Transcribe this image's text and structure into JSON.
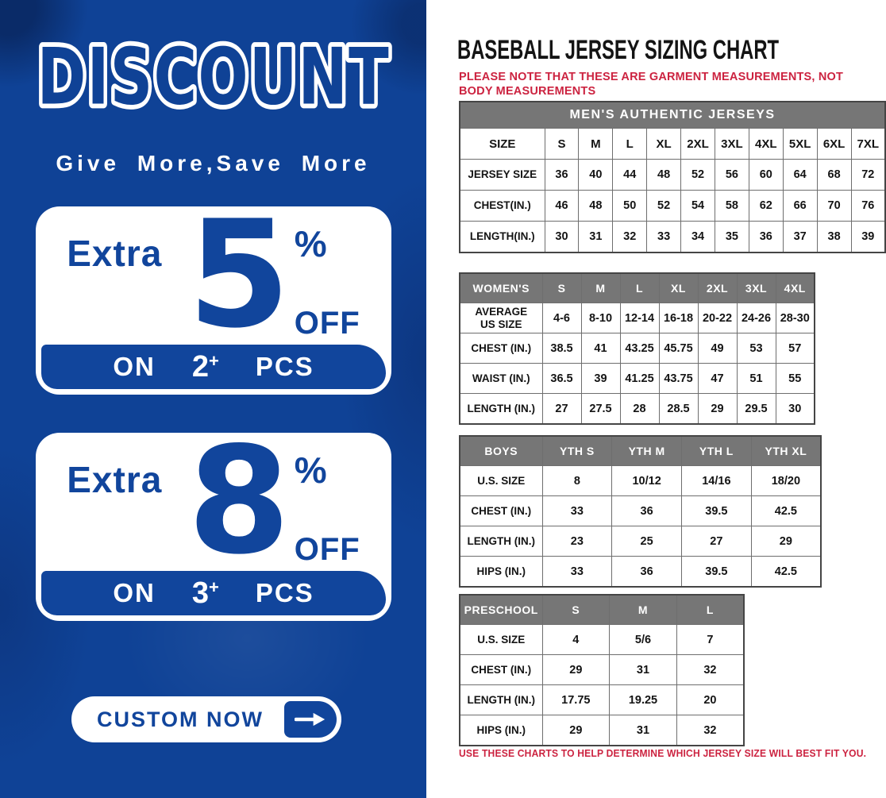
{
  "left_panel": {
    "headline": "DISCOUNT",
    "tagline": "Give More,Save More",
    "offers": [
      {
        "prefix": "Extra",
        "percent": "5",
        "percent_sign": "%",
        "off": "OFF",
        "on": "ON",
        "qty": "2",
        "plus": "+",
        "pcs": "PCS"
      },
      {
        "prefix": "Extra",
        "percent": "8",
        "percent_sign": "%",
        "off": "OFF",
        "on": "ON",
        "qty": "3",
        "plus": "+",
        "pcs": "PCS"
      }
    ],
    "cta": {
      "label": "CUSTOM NOW",
      "icon": "arrow-right-icon"
    }
  },
  "right_panel": {
    "title": "BASEBALL JERSEY SIZING CHART",
    "note": "PLEASE NOTE THAT THESE ARE GARMENT MEASUREMENTS, NOT BODY MEASUREMENTS",
    "footer_note": "USE THESE CHARTS TO HELP DETERMINE WHICH JERSEY SIZE WILL BEST FIT YOU.",
    "tables": [
      {
        "id": "mens",
        "banner": "MEN'S AUTHENTIC JERSEYS",
        "header_style": "plain",
        "columns": [
          "SIZE",
          "S",
          "M",
          "L",
          "XL",
          "2XL",
          "3XL",
          "4XL",
          "5XL",
          "6XL",
          "7XL"
        ],
        "rows": [
          [
            "JERSEY SIZE",
            "36",
            "40",
            "44",
            "48",
            "52",
            "56",
            "60",
            "64",
            "68",
            "72"
          ],
          [
            "CHEST(IN.)",
            "46",
            "48",
            "50",
            "52",
            "54",
            "58",
            "62",
            "66",
            "70",
            "76"
          ],
          [
            "LENGTH(IN.)",
            "30",
            "31",
            "32",
            "33",
            "34",
            "35",
            "36",
            "37",
            "38",
            "39"
          ]
        ]
      },
      {
        "id": "womens",
        "banner": null,
        "header_style": "gray",
        "columns": [
          "WOMEN'S",
          "S",
          "M",
          "L",
          "XL",
          "2XL",
          "3XL",
          "4XL"
        ],
        "rows": [
          [
            "AVERAGE\nUS SIZE",
            "4-6",
            "8-10",
            "12-14",
            "16-18",
            "20-22",
            "24-26",
            "28-30"
          ],
          [
            "CHEST (IN.)",
            "38.5",
            "41",
            "43.25",
            "45.75",
            "49",
            "53",
            "57"
          ],
          [
            "WAIST (IN.)",
            "36.5",
            "39",
            "41.25",
            "43.75",
            "47",
            "51",
            "55"
          ],
          [
            "LENGTH (IN.)",
            "27",
            "27.5",
            "28",
            "28.5",
            "29",
            "29.5",
            "30"
          ]
        ]
      },
      {
        "id": "boys",
        "banner": null,
        "header_style": "gray",
        "columns": [
          "BOYS",
          "YTH S",
          "YTH M",
          "YTH L",
          "YTH XL"
        ],
        "rows": [
          [
            "U.S. SIZE",
            "8",
            "10/12",
            "14/16",
            "18/20"
          ],
          [
            "CHEST (IN.)",
            "33",
            "36",
            "39.5",
            "42.5"
          ],
          [
            "LENGTH (IN.)",
            "23",
            "25",
            "27",
            "29"
          ],
          [
            "HIPS (IN.)",
            "33",
            "36",
            "39.5",
            "42.5"
          ]
        ]
      },
      {
        "id": "preschool",
        "banner": null,
        "header_style": "gray",
        "columns": [
          "PRESCHOOL",
          "S",
          "M",
          "L"
        ],
        "rows": [
          [
            "U.S. SIZE",
            "4",
            "5/6",
            "7"
          ],
          [
            "CHEST (IN.)",
            "29",
            "31",
            "32"
          ],
          [
            "LENGTH (IN.)",
            "17.75",
            "19.25",
            "20"
          ],
          [
            "HIPS (IN.)",
            "29",
            "31",
            "32"
          ]
        ]
      }
    ]
  },
  "colors": {
    "panel_blue": "#0f4296",
    "accent_blue": "#11459c",
    "table_header_gray": "#767676",
    "note_red": "#cc2340",
    "table_border": "#454545"
  }
}
